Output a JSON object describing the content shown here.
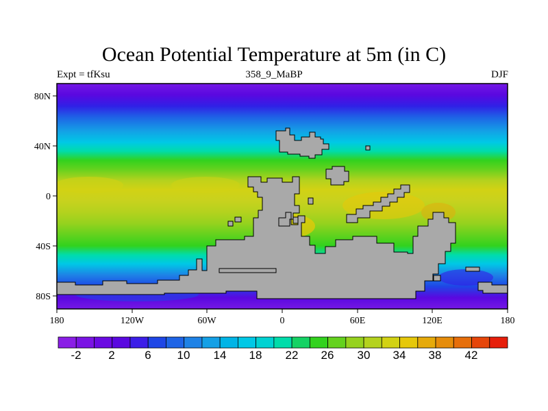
{
  "title": "Ocean Potential Temperature at 5m (in C)",
  "subtitle_left": "Expt = tfKsu",
  "subtitle_center": "358_9_MaBP",
  "subtitle_right": "DJF",
  "lat_labels": [
    "80N",
    "40N",
    "0",
    "40S",
    "80S"
  ],
  "lon_labels": [
    "180",
    "120W",
    "60W",
    "0",
    "60E",
    "120E",
    "180"
  ],
  "colorbar": {
    "labels": [
      "-2",
      "2",
      "6",
      "10",
      "14",
      "18",
      "22",
      "26",
      "30",
      "34",
      "38",
      "42"
    ],
    "colors": [
      "#8a1ee6",
      "#7a14e4",
      "#6a0ae2",
      "#5a08e0",
      "#3c1ee8",
      "#1e46e6",
      "#1e64e6",
      "#1e82e6",
      "#14a0e6",
      "#00b4e6",
      "#00c8e6",
      "#00d2d2",
      "#00dcaa",
      "#14d264",
      "#32d21e",
      "#64d21e",
      "#96d21e",
      "#b4d21e",
      "#d2d214",
      "#e6c80a",
      "#e6aa0a",
      "#e68c0a",
      "#e66e0a",
      "#e6460a",
      "#e61e0a"
    ]
  },
  "colors": {
    "land": "#a9a9a9",
    "border": "#000000"
  }
}
